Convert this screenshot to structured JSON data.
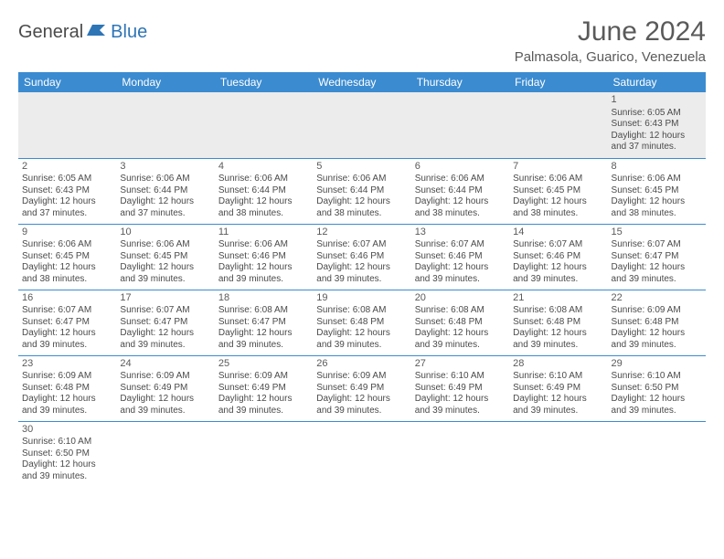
{
  "brand": {
    "part1": "General",
    "part2": "Blue"
  },
  "title": "June 2024",
  "location": "Palmasola, Guarico, Venezuela",
  "colors": {
    "header_bg": "#3b8bd0",
    "header_text": "#ffffff",
    "border": "#3b8bd0",
    "brand_blue": "#2e75b6",
    "text": "#4a4a4a",
    "empty_bg": "#ececec"
  },
  "day_headers": [
    "Sunday",
    "Monday",
    "Tuesday",
    "Wednesday",
    "Thursday",
    "Friday",
    "Saturday"
  ],
  "weeks": [
    [
      null,
      null,
      null,
      null,
      null,
      null,
      {
        "n": "1",
        "sr": "Sunrise: 6:05 AM",
        "ss": "Sunset: 6:43 PM",
        "d1": "Daylight: 12 hours",
        "d2": "and 37 minutes."
      }
    ],
    [
      {
        "n": "2",
        "sr": "Sunrise: 6:05 AM",
        "ss": "Sunset: 6:43 PM",
        "d1": "Daylight: 12 hours",
        "d2": "and 37 minutes."
      },
      {
        "n": "3",
        "sr": "Sunrise: 6:06 AM",
        "ss": "Sunset: 6:44 PM",
        "d1": "Daylight: 12 hours",
        "d2": "and 37 minutes."
      },
      {
        "n": "4",
        "sr": "Sunrise: 6:06 AM",
        "ss": "Sunset: 6:44 PM",
        "d1": "Daylight: 12 hours",
        "d2": "and 38 minutes."
      },
      {
        "n": "5",
        "sr": "Sunrise: 6:06 AM",
        "ss": "Sunset: 6:44 PM",
        "d1": "Daylight: 12 hours",
        "d2": "and 38 minutes."
      },
      {
        "n": "6",
        "sr": "Sunrise: 6:06 AM",
        "ss": "Sunset: 6:44 PM",
        "d1": "Daylight: 12 hours",
        "d2": "and 38 minutes."
      },
      {
        "n": "7",
        "sr": "Sunrise: 6:06 AM",
        "ss": "Sunset: 6:45 PM",
        "d1": "Daylight: 12 hours",
        "d2": "and 38 minutes."
      },
      {
        "n": "8",
        "sr": "Sunrise: 6:06 AM",
        "ss": "Sunset: 6:45 PM",
        "d1": "Daylight: 12 hours",
        "d2": "and 38 minutes."
      }
    ],
    [
      {
        "n": "9",
        "sr": "Sunrise: 6:06 AM",
        "ss": "Sunset: 6:45 PM",
        "d1": "Daylight: 12 hours",
        "d2": "and 38 minutes."
      },
      {
        "n": "10",
        "sr": "Sunrise: 6:06 AM",
        "ss": "Sunset: 6:45 PM",
        "d1": "Daylight: 12 hours",
        "d2": "and 39 minutes."
      },
      {
        "n": "11",
        "sr": "Sunrise: 6:06 AM",
        "ss": "Sunset: 6:46 PM",
        "d1": "Daylight: 12 hours",
        "d2": "and 39 minutes."
      },
      {
        "n": "12",
        "sr": "Sunrise: 6:07 AM",
        "ss": "Sunset: 6:46 PM",
        "d1": "Daylight: 12 hours",
        "d2": "and 39 minutes."
      },
      {
        "n": "13",
        "sr": "Sunrise: 6:07 AM",
        "ss": "Sunset: 6:46 PM",
        "d1": "Daylight: 12 hours",
        "d2": "and 39 minutes."
      },
      {
        "n": "14",
        "sr": "Sunrise: 6:07 AM",
        "ss": "Sunset: 6:46 PM",
        "d1": "Daylight: 12 hours",
        "d2": "and 39 minutes."
      },
      {
        "n": "15",
        "sr": "Sunrise: 6:07 AM",
        "ss": "Sunset: 6:47 PM",
        "d1": "Daylight: 12 hours",
        "d2": "and 39 minutes."
      }
    ],
    [
      {
        "n": "16",
        "sr": "Sunrise: 6:07 AM",
        "ss": "Sunset: 6:47 PM",
        "d1": "Daylight: 12 hours",
        "d2": "and 39 minutes."
      },
      {
        "n": "17",
        "sr": "Sunrise: 6:07 AM",
        "ss": "Sunset: 6:47 PM",
        "d1": "Daylight: 12 hours",
        "d2": "and 39 minutes."
      },
      {
        "n": "18",
        "sr": "Sunrise: 6:08 AM",
        "ss": "Sunset: 6:47 PM",
        "d1": "Daylight: 12 hours",
        "d2": "and 39 minutes."
      },
      {
        "n": "19",
        "sr": "Sunrise: 6:08 AM",
        "ss": "Sunset: 6:48 PM",
        "d1": "Daylight: 12 hours",
        "d2": "and 39 minutes."
      },
      {
        "n": "20",
        "sr": "Sunrise: 6:08 AM",
        "ss": "Sunset: 6:48 PM",
        "d1": "Daylight: 12 hours",
        "d2": "and 39 minutes."
      },
      {
        "n": "21",
        "sr": "Sunrise: 6:08 AM",
        "ss": "Sunset: 6:48 PM",
        "d1": "Daylight: 12 hours",
        "d2": "and 39 minutes."
      },
      {
        "n": "22",
        "sr": "Sunrise: 6:09 AM",
        "ss": "Sunset: 6:48 PM",
        "d1": "Daylight: 12 hours",
        "d2": "and 39 minutes."
      }
    ],
    [
      {
        "n": "23",
        "sr": "Sunrise: 6:09 AM",
        "ss": "Sunset: 6:48 PM",
        "d1": "Daylight: 12 hours",
        "d2": "and 39 minutes."
      },
      {
        "n": "24",
        "sr": "Sunrise: 6:09 AM",
        "ss": "Sunset: 6:49 PM",
        "d1": "Daylight: 12 hours",
        "d2": "and 39 minutes."
      },
      {
        "n": "25",
        "sr": "Sunrise: 6:09 AM",
        "ss": "Sunset: 6:49 PM",
        "d1": "Daylight: 12 hours",
        "d2": "and 39 minutes."
      },
      {
        "n": "26",
        "sr": "Sunrise: 6:09 AM",
        "ss": "Sunset: 6:49 PM",
        "d1": "Daylight: 12 hours",
        "d2": "and 39 minutes."
      },
      {
        "n": "27",
        "sr": "Sunrise: 6:10 AM",
        "ss": "Sunset: 6:49 PM",
        "d1": "Daylight: 12 hours",
        "d2": "and 39 minutes."
      },
      {
        "n": "28",
        "sr": "Sunrise: 6:10 AM",
        "ss": "Sunset: 6:49 PM",
        "d1": "Daylight: 12 hours",
        "d2": "and 39 minutes."
      },
      {
        "n": "29",
        "sr": "Sunrise: 6:10 AM",
        "ss": "Sunset: 6:50 PM",
        "d1": "Daylight: 12 hours",
        "d2": "and 39 minutes."
      }
    ],
    [
      {
        "n": "30",
        "sr": "Sunrise: 6:10 AM",
        "ss": "Sunset: 6:50 PM",
        "d1": "Daylight: 12 hours",
        "d2": "and 39 minutes."
      },
      null,
      null,
      null,
      null,
      null,
      null
    ]
  ]
}
